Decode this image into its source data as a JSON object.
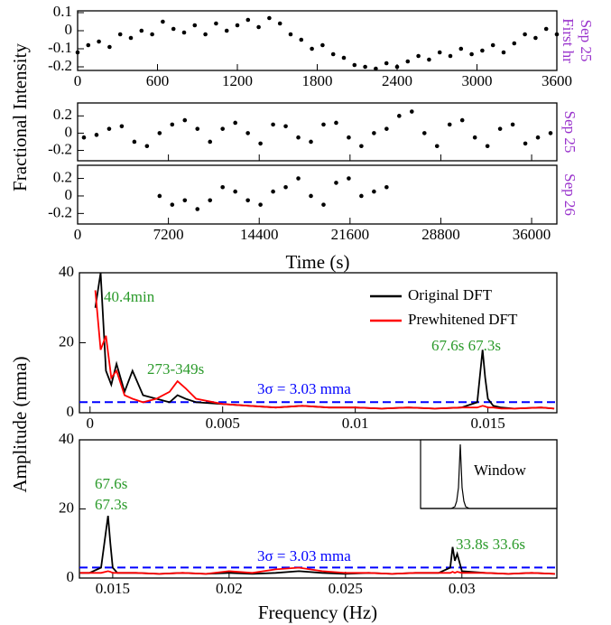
{
  "chart_data": [
    {
      "type": "scatter",
      "side_label": [
        "First hr",
        "Sep 25"
      ],
      "xlim": [
        0,
        3600
      ],
      "ylim": [
        -0.22,
        0.11
      ],
      "xticks": [
        0,
        600,
        1200,
        1800,
        2400,
        3000,
        3600
      ],
      "yticks": [
        0.1,
        0,
        -0.1,
        -0.2
      ],
      "xtick_labels": true,
      "color": "#000000",
      "x": [
        0,
        80,
        160,
        240,
        320,
        400,
        480,
        560,
        640,
        720,
        800,
        880,
        960,
        1040,
        1120,
        1200,
        1280,
        1360,
        1440,
        1520,
        1600,
        1680,
        1760,
        1840,
        1920,
        2000,
        2080,
        2160,
        2240,
        2320,
        2400,
        2480,
        2560,
        2640,
        2720,
        2800,
        2880,
        2960,
        3040,
        3120,
        3200,
        3280,
        3360,
        3440,
        3520,
        3600
      ],
      "values": [
        -0.12,
        -0.08,
        -0.06,
        -0.09,
        -0.02,
        -0.04,
        0.0,
        -0.02,
        0.05,
        0.01,
        -0.01,
        0.03,
        -0.02,
        0.04,
        0.0,
        0.03,
        0.06,
        0.02,
        0.07,
        0.04,
        -0.02,
        -0.05,
        -0.1,
        -0.08,
        -0.13,
        -0.15,
        -0.19,
        -0.2,
        -0.21,
        -0.18,
        -0.2,
        -0.17,
        -0.14,
        -0.16,
        -0.12,
        -0.14,
        -0.1,
        -0.13,
        -0.11,
        -0.08,
        -0.12,
        -0.07,
        -0.02,
        -0.04,
        0.01,
        -0.02
      ]
    },
    {
      "type": "scatter",
      "ylabel": "Fractional Intensity",
      "side_label": [
        "Sep 25"
      ],
      "xlim": [
        0,
        38000
      ],
      "ylim": [
        -0.32,
        0.35
      ],
      "xticks": [
        0,
        7200,
        14400,
        21600,
        28800,
        36000
      ],
      "yticks": [
        0.2,
        0,
        -0.2
      ],
      "xtick_labels": false,
      "color": "#000000",
      "x": [
        500,
        1500,
        2500,
        3500,
        4500,
        5500,
        6500,
        7500,
        8500,
        9500,
        10500,
        11500,
        12500,
        13500,
        14500,
        15500,
        16500,
        17500,
        18500,
        19500,
        20500,
        21500,
        22500,
        23500,
        24500,
        25500,
        26500,
        27500,
        28500,
        29500,
        30500,
        31500,
        32500,
        33500,
        34500,
        35500,
        36500,
        37500
      ],
      "values": [
        -0.05,
        -0.02,
        0.05,
        0.08,
        -0.1,
        -0.15,
        0.0,
        0.1,
        0.15,
        0.05,
        -0.1,
        0.05,
        0.12,
        0.0,
        -0.12,
        0.1,
        0.08,
        -0.05,
        -0.1,
        0.1,
        0.12,
        -0.05,
        -0.15,
        0.0,
        0.05,
        0.2,
        0.25,
        0.0,
        -0.15,
        0.1,
        0.15,
        -0.05,
        -0.15,
        0.05,
        0.1,
        -0.12,
        -0.05,
        0.0
      ]
    },
    {
      "type": "scatter",
      "xlabel": "Time (s)",
      "side_label": [
        "Sep 26"
      ],
      "xlim": [
        0,
        38000
      ],
      "ylim": [
        -0.32,
        0.35
      ],
      "xticks": [
        0,
        7200,
        14400,
        21600,
        28800,
        36000
      ],
      "yticks": [
        0.2,
        0,
        -0.2
      ],
      "xtick_labels": true,
      "color": "#000000",
      "x": [
        6500,
        7500,
        8500,
        9500,
        10500,
        11500,
        12500,
        13500,
        14500,
        15500,
        16500,
        17500,
        18500,
        19500,
        20500,
        21500,
        22500,
        23500,
        24500
      ],
      "values": [
        0.0,
        -0.1,
        -0.05,
        -0.15,
        -0.05,
        0.1,
        0.05,
        -0.05,
        -0.1,
        0.05,
        0.1,
        0.2,
        0.0,
        -0.1,
        0.15,
        0.2,
        0.0,
        0.05,
        0.1
      ]
    },
    {
      "type": "line",
      "ylabel": "Amplitude (mma)",
      "xlim": [
        -0.0004,
        0.0176
      ],
      "ylim": [
        0,
        40
      ],
      "xticks": [
        0,
        0.005,
        0.01,
        0.015
      ],
      "yticks": [
        0,
        20,
        40
      ],
      "xtick_labels": true,
      "legend": "upper right",
      "threshold": {
        "value": 3.03,
        "label": "3σ = 3.03 mma",
        "color": "#0000ff"
      },
      "annotations": [
        "40.4min",
        "273-349s",
        "67.6s 67.3s"
      ],
      "x": [
        0.0002,
        0.0004,
        0.0006,
        0.0008,
        0.001,
        0.0013,
        0.0016,
        0.002,
        0.0025,
        0.003,
        0.0033,
        0.0036,
        0.004,
        0.005,
        0.006,
        0.007,
        0.008,
        0.009,
        0.01,
        0.011,
        0.012,
        0.013,
        0.014,
        0.0146,
        0.0148,
        0.0149,
        0.015,
        0.0152,
        0.0155,
        0.016,
        0.017,
        0.0175
      ],
      "series": [
        {
          "name": "Original DFT",
          "color": "#000000",
          "values": [
            30,
            40,
            12,
            8,
            14,
            6,
            12,
            5,
            4,
            3,
            5,
            4,
            3,
            2.5,
            2,
            1.5,
            2,
            1.5,
            1.5,
            1.2,
            1.5,
            1.2,
            1.5,
            3,
            18,
            10,
            4,
            2,
            1.5,
            1.2,
            1.5,
            1.2
          ]
        },
        {
          "name": "Prewhitened DFT",
          "color": "#ff0000",
          "values": [
            35,
            18,
            22,
            10,
            12,
            5,
            4,
            3,
            4,
            6,
            9,
            7,
            4,
            2.5,
            2,
            1.5,
            2,
            1.5,
            1.5,
            1.2,
            1.5,
            1.2,
            1.5,
            1.5,
            2,
            1.8,
            1.5,
            1.5,
            1.2,
            1.2,
            1.5,
            1.2
          ]
        }
      ]
    },
    {
      "type": "line",
      "xlabel": "Frequency (Hz)",
      "xlim": [
        0.01357,
        0.03408
      ],
      "ylim": [
        0,
        40
      ],
      "xticks": [
        0.015,
        0.02,
        0.025,
        0.03
      ],
      "yticks": [
        0,
        20,
        40
      ],
      "xtick_labels": true,
      "threshold": {
        "value": 3.03,
        "label": "3σ = 3.03 mma",
        "color": "#0000ff"
      },
      "annotations": [
        "67.6s",
        "67.3s",
        "33.8s 33.6s"
      ],
      "inset": {
        "label": "Window"
      },
      "x": [
        0.0136,
        0.014,
        0.0145,
        0.0148,
        0.0149,
        0.015,
        0.0152,
        0.016,
        0.017,
        0.018,
        0.019,
        0.02,
        0.021,
        0.022,
        0.023,
        0.024,
        0.025,
        0.026,
        0.027,
        0.028,
        0.029,
        0.0295,
        0.0296,
        0.0297,
        0.0298,
        0.03,
        0.031,
        0.032,
        0.033,
        0.034
      ],
      "series": [
        {
          "name": "Original DFT",
          "color": "#000000",
          "values": [
            1.5,
            1.5,
            3,
            18,
            10,
            3,
            1.5,
            1.5,
            1.2,
            1.5,
            1.2,
            1.5,
            1.2,
            1.5,
            2,
            1.5,
            1.2,
            1.5,
            1.2,
            1.5,
            1.5,
            3,
            9,
            5,
            7,
            2,
            1.5,
            1.2,
            1.5,
            1.2
          ]
        },
        {
          "name": "Prewhitened DFT",
          "color": "#ff0000",
          "values": [
            1.5,
            1.5,
            1.5,
            2,
            1.8,
            1.5,
            1.5,
            1.5,
            1.2,
            1.5,
            1.2,
            2,
            1.5,
            2.5,
            3,
            2,
            1.5,
            1.5,
            1.2,
            1.5,
            1.5,
            1.5,
            1.8,
            1.5,
            1.8,
            1.5,
            1.5,
            1.2,
            1.5,
            1.2
          ]
        }
      ]
    }
  ]
}
